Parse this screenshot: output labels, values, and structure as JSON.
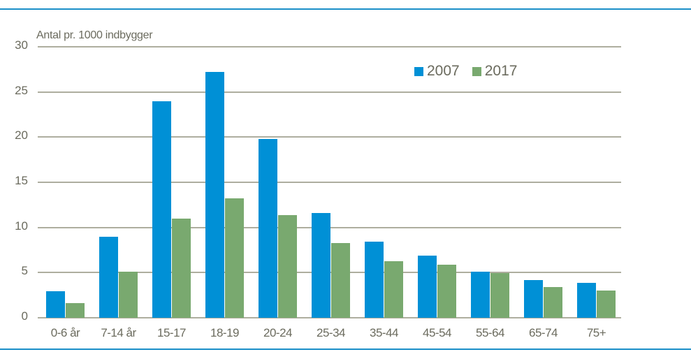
{
  "chart_data": {
    "type": "bar",
    "title": "",
    "ylabel": "Antal  pr. 1000 indbyggere",
    "ylabel_display": "Antal  pr. 1000 indbygger",
    "xlabel": "",
    "ylim": [
      0,
      30
    ],
    "yticks": [
      0,
      5,
      10,
      15,
      20,
      25,
      30
    ],
    "grid": true,
    "legend_position": "top-right",
    "categories": [
      "0-6 år",
      "7-14 år",
      "15-17",
      "18-19",
      "20-24",
      "25-34",
      "35-44",
      "45-54",
      "55-64",
      "65-74",
      "75+"
    ],
    "series": [
      {
        "name": "2007",
        "color": "#0090d6",
        "values": [
          2.9,
          9.0,
          24.0,
          27.2,
          19.8,
          11.6,
          8.4,
          6.9,
          5.1,
          4.2,
          3.9
        ]
      },
      {
        "name": "2017",
        "color": "#79a96f",
        "values": [
          1.6,
          5.1,
          11.0,
          13.2,
          11.4,
          8.3,
          6.3,
          5.9,
          4.95,
          3.4,
          3.0
        ]
      }
    ]
  },
  "labels": {
    "y_axis_title": "Antal  pr. 1000 indbygger",
    "legend_2007": "2007",
    "legend_2017": "2017"
  },
  "colors": {
    "rule": "#1b8fc8",
    "grid": "#aeae9f",
    "text": "#6b6b5e"
  }
}
